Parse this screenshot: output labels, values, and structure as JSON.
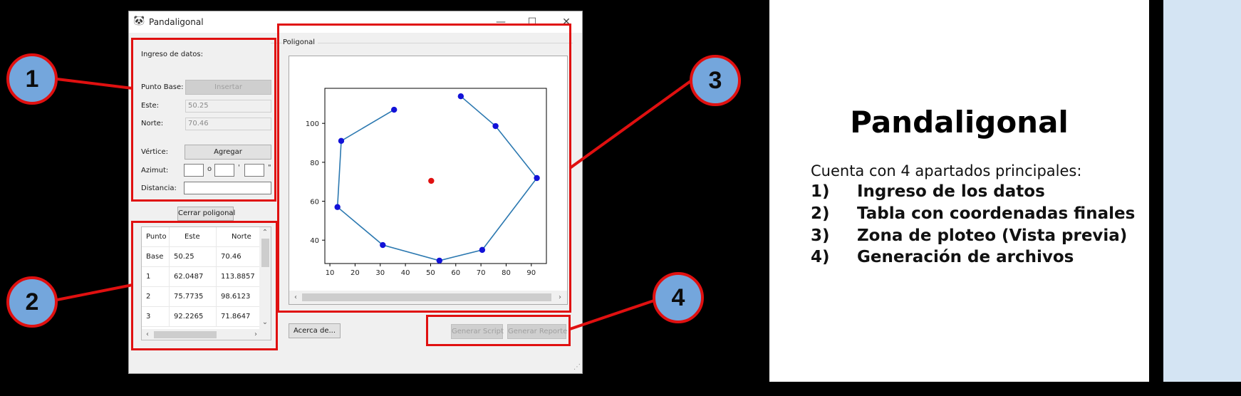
{
  "window": {
    "title": "Pandaligonal",
    "controls": {
      "minimize": "—",
      "maximize": "☐",
      "close": "✕"
    }
  },
  "input_panel": {
    "heading": "Ingreso de datos:",
    "base_label": "Punto Base:",
    "insert_button": "Insertar",
    "este_label": "Este:",
    "este_value": "50.25",
    "norte_label": "Norte:",
    "norte_value": "70.46",
    "vertex_label": "Vértice:",
    "add_button": "Agregar",
    "azimuth_label": "Azimut:",
    "deg_symbol": "o",
    "min_symbol": "'",
    "sec_symbol": "\"",
    "distance_label": "Distancia:",
    "close_button": "Cerrar poligonal"
  },
  "table": {
    "columns": [
      "Punto",
      "Este",
      "Norte"
    ],
    "rows": [
      [
        "Base",
        "50.25",
        "70.46"
      ],
      [
        "1",
        "62.0487",
        "113.8857"
      ],
      [
        "2",
        "75.7735",
        "98.6123"
      ],
      [
        "3",
        "92.2265",
        "71.8647"
      ]
    ]
  },
  "plot_panel": {
    "group_title": "Poligonal"
  },
  "chart_data": {
    "type": "line",
    "x_ticks": [
      10,
      20,
      30,
      40,
      50,
      60,
      70,
      80,
      90
    ],
    "y_ticks": [
      40,
      60,
      80,
      100
    ],
    "xlim": [
      8,
      96
    ],
    "ylim": [
      28,
      118
    ],
    "polygon_color": "#2b78b0",
    "vertex_color": "#1212d8",
    "base_color": "#e01010",
    "polygon_x": [
      35.5,
      14.5,
      13.0,
      31.0,
      53.5,
      70.5,
      92.2,
      75.8,
      62.0
    ],
    "polygon_y": [
      107.0,
      91.0,
      57.0,
      37.5,
      29.5,
      35.0,
      71.9,
      98.6,
      113.9
    ],
    "base_point": [
      50.25,
      70.46
    ]
  },
  "footer": {
    "about_button": "Acerca de...",
    "script_button": "Generar Script",
    "report_button": "Generar Reporte"
  },
  "annotations": [
    "1",
    "2",
    "3",
    "4"
  ],
  "slide": {
    "title": "Pandaligonal",
    "intro": "Cuenta con 4 apartados principales:",
    "items": [
      {
        "num": "1)",
        "text": "Ingreso de los datos"
      },
      {
        "num": "2)",
        "text": "Tabla con coordenadas finales"
      },
      {
        "num": "3)",
        "text": "Zona de ploteo (Vista previa)"
      },
      {
        "num": "4)",
        "text": "Generación de archivos"
      }
    ]
  }
}
